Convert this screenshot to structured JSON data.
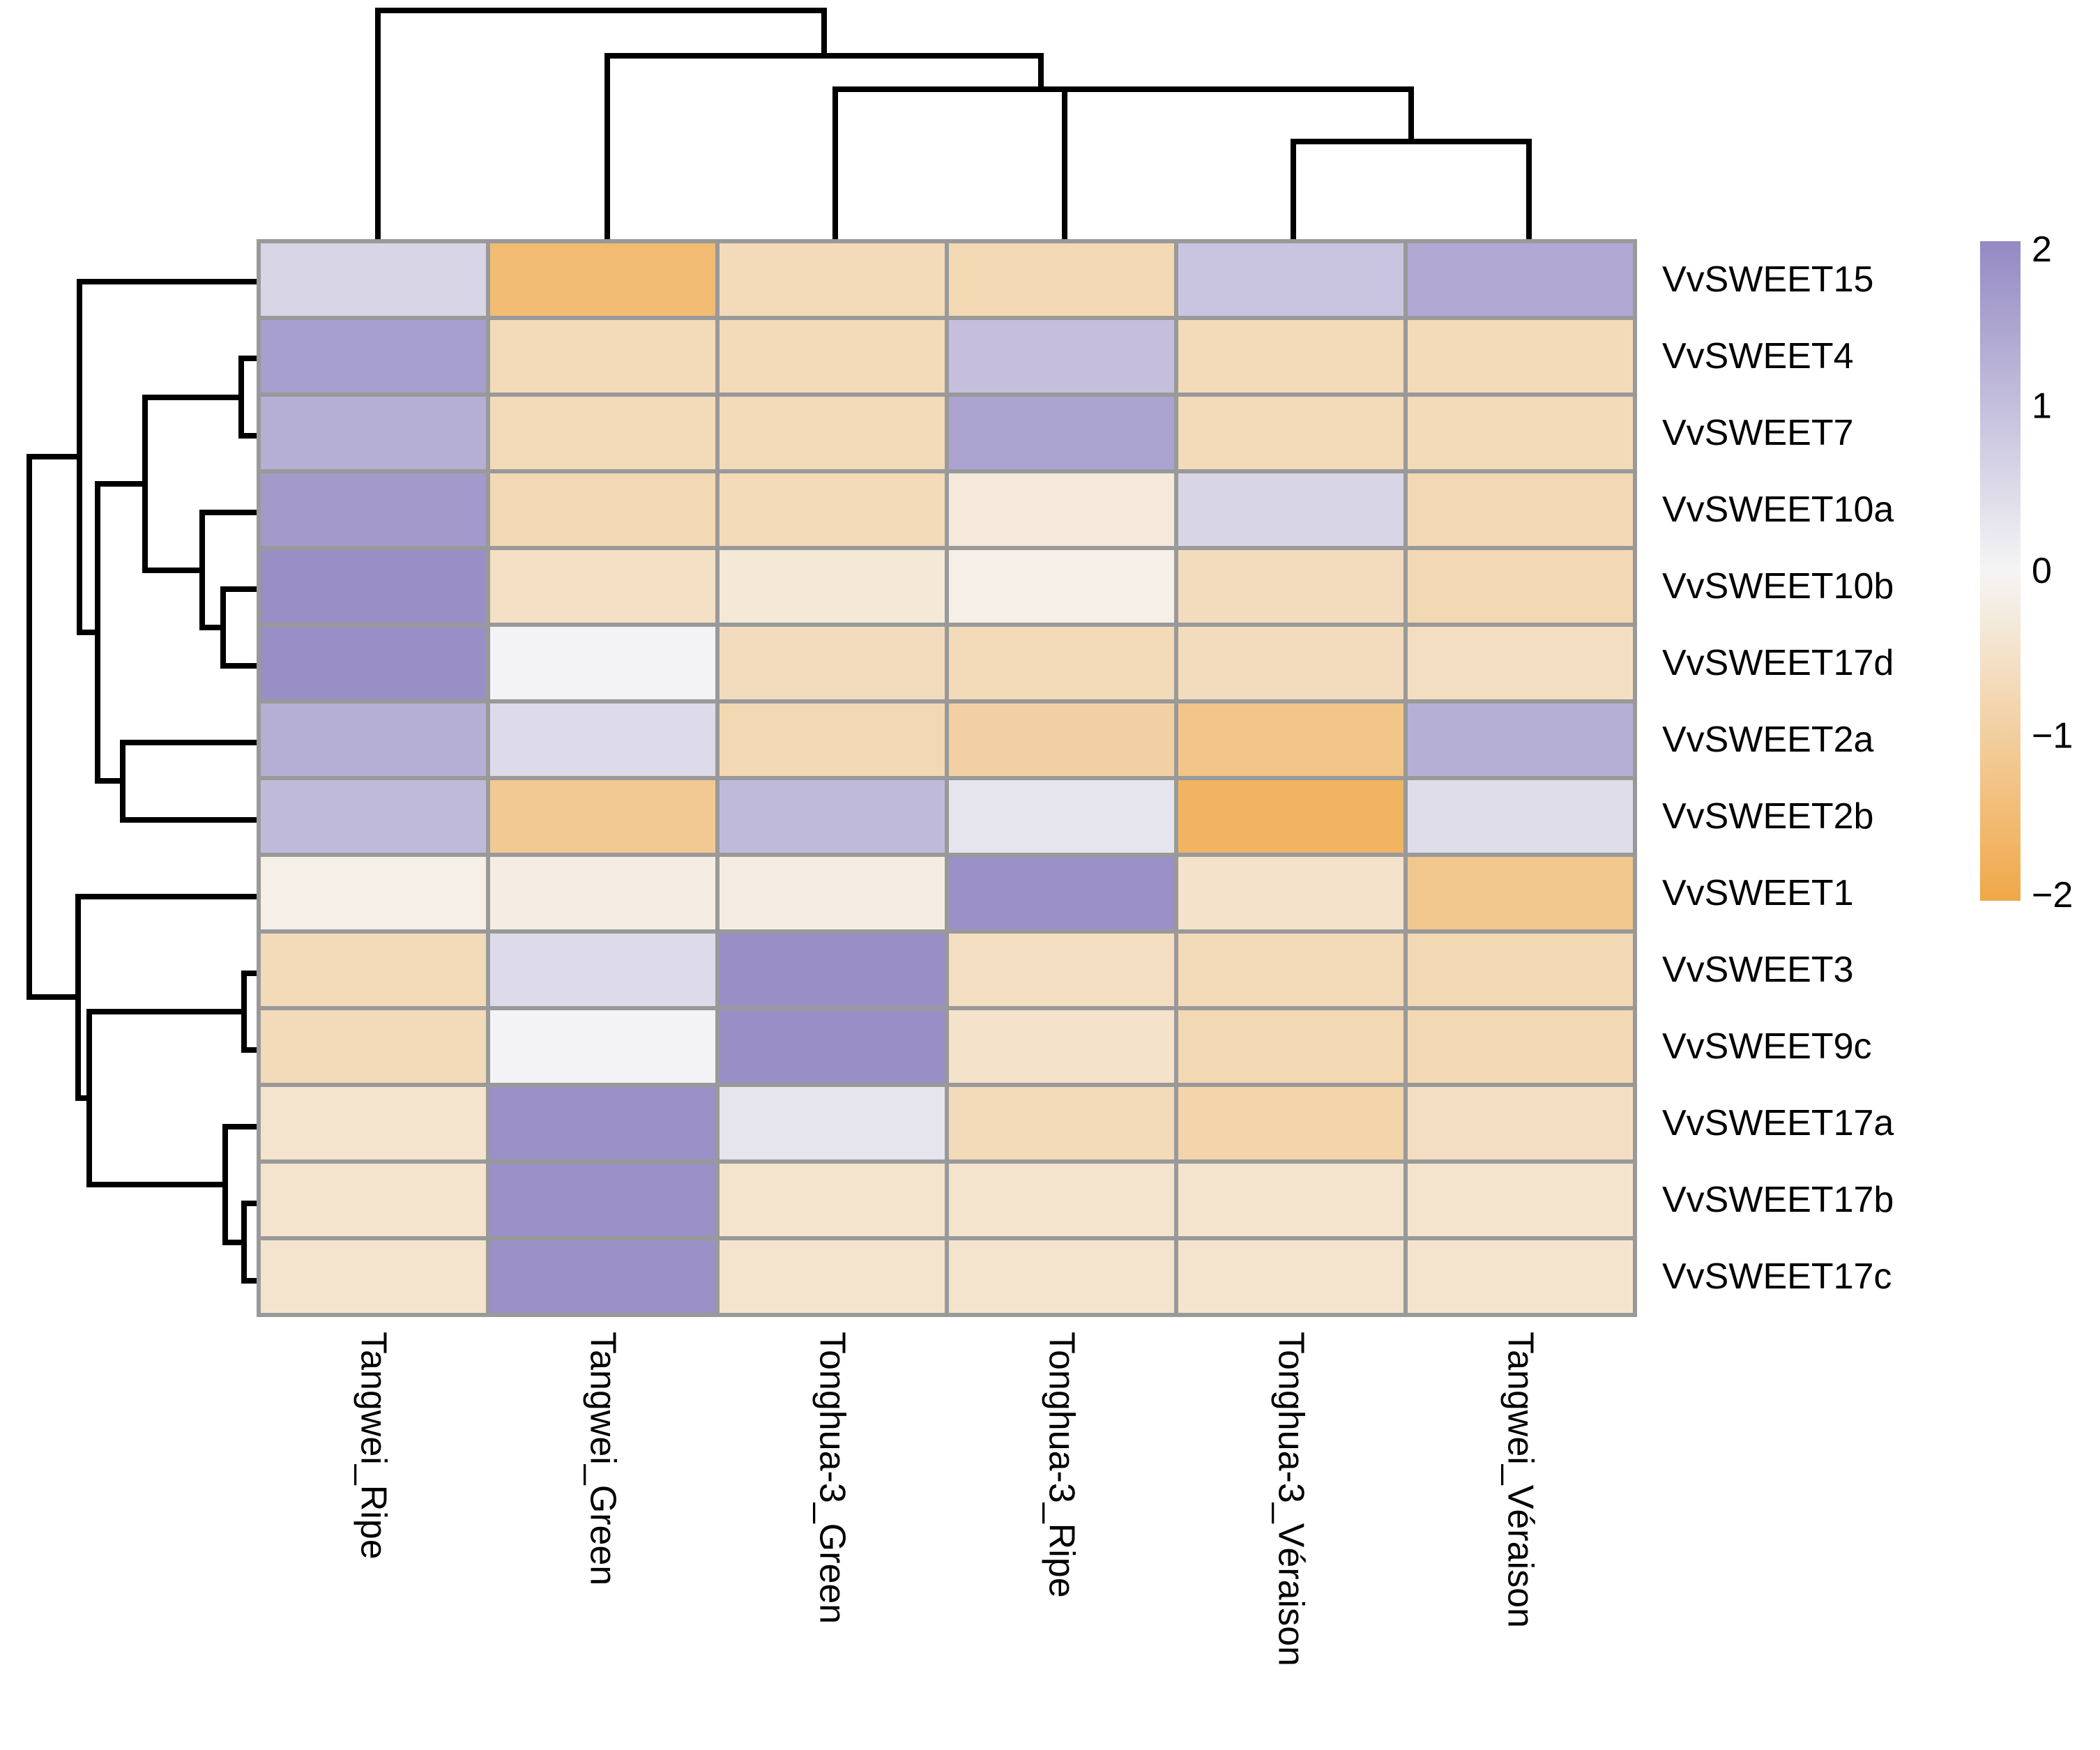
{
  "chart_data": {
    "type": "heatmap",
    "title": "",
    "rows": [
      "VvSWEET15",
      "VvSWEET4",
      "VvSWEET7",
      "VvSWEET10a",
      "VvSWEET10b",
      "VvSWEET17d",
      "VvSWEET2a",
      "VvSWEET2b",
      "VvSWEET1",
      "VvSWEET3",
      "VvSWEET9c",
      "VvSWEET17a",
      "VvSWEET17b",
      "VvSWEET17c"
    ],
    "columns": [
      "Tangwei_Ripe",
      "Tangwei_Green",
      "Tonghua-3_Green",
      "Tonghua-3_Ripe",
      "Tonghua-3_Véraison",
      "Tangwei_Véraison"
    ],
    "values": [
      [
        0.6,
        -1.5,
        -0.7,
        -0.75,
        0.9,
        1.4
      ],
      [
        1.6,
        -0.7,
        -0.7,
        1.0,
        -0.7,
        -0.7
      ],
      [
        1.3,
        -0.7,
        -0.7,
        1.5,
        -0.7,
        -0.7
      ],
      [
        1.7,
        -0.75,
        -0.7,
        -0.3,
        0.6,
        -0.75
      ],
      [
        1.9,
        -0.55,
        -0.35,
        -0.15,
        -0.65,
        -0.75
      ],
      [
        1.9,
        0.05,
        -0.65,
        -0.7,
        -0.65,
        -0.6
      ],
      [
        1.3,
        0.5,
        -0.75,
        -0.95,
        -1.25,
        1.3
      ],
      [
        1.1,
        -1.15,
        1.1,
        0.3,
        -1.7,
        0.45
      ],
      [
        -0.15,
        -0.2,
        -0.2,
        1.85,
        -0.5,
        -1.2
      ],
      [
        -0.7,
        0.5,
        1.9,
        -0.6,
        -0.7,
        -0.75
      ],
      [
        -0.7,
        0.05,
        1.9,
        -0.5,
        -0.75,
        -0.75
      ],
      [
        -0.45,
        1.85,
        0.3,
        -0.7,
        -0.85,
        -0.6
      ],
      [
        -0.45,
        1.85,
        -0.45,
        -0.45,
        -0.45,
        -0.45
      ],
      [
        -0.45,
        1.85,
        -0.45,
        -0.45,
        -0.45,
        -0.45
      ]
    ],
    "color_scale": {
      "min": -2,
      "max": 2,
      "low_color": "#f0a848",
      "mid_color": "#f5f5f5",
      "high_color": "#9489c4",
      "ticks": [
        2,
        1,
        0,
        -1,
        -2
      ],
      "tick_labels": [
        "2",
        "1",
        "0",
        "−1",
        "−2"
      ]
    },
    "row_dendrogram": [
      "VvSWEET15",
      [
        "VvSWEET4",
        "VvSWEET7"
      ],
      [
        "VvSWEET10a",
        [
          "VvSWEET10b",
          "VvSWEET17d"
        ]
      ],
      [
        "VvSWEET2a",
        "VvSWEET2b"
      ],
      "VvSWEET1",
      [
        "VvSWEET3",
        "VvSWEET9c"
      ],
      [
        "VvSWEET17a",
        [
          "VvSWEET17b",
          "VvSWEET17c"
        ]
      ]
    ],
    "col_dendrogram": [
      "Tangwei_Ripe",
      [
        "Tangwei_Green",
        [
          "Tonghua-3_Green",
          [
            "Tonghua-3_Ripe",
            [
              "Tonghua-3_Véraison",
              "Tangwei_Véraison"
            ]
          ]
        ]
      ]
    ],
    "grid_color": "#999999",
    "legend_position": "right"
  }
}
